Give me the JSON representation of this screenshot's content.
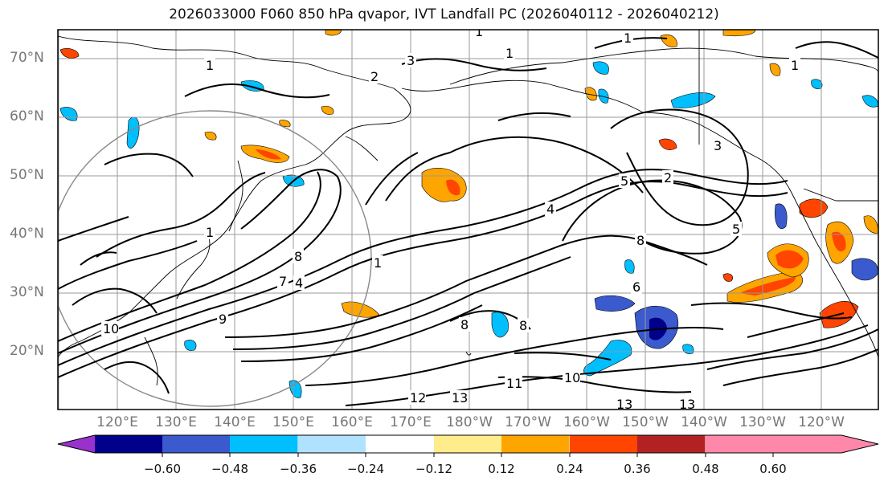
{
  "figure": {
    "title": "2026033000 F060 850 hPa qvapor, IVT Landfall PC (2026040112 - 2026040212)"
  },
  "axes": {
    "lat_labels": [
      "70°N",
      "60°N",
      "50°N",
      "40°N",
      "30°N",
      "20°N"
    ],
    "lon_labels": [
      "120°E",
      "130°E",
      "140°E",
      "150°E",
      "160°E",
      "170°E",
      "180°W",
      "170°W",
      "160°W",
      "150°W",
      "140°W",
      "130°W",
      "120°W"
    ]
  },
  "colorbar": {
    "colors": [
      "#9932cc",
      "#00008b",
      "#3a5acd",
      "#00bfff",
      "#b0e2ff",
      "#ffffff",
      "#ffec8b",
      "#ffa500",
      "#ff4500",
      "#b22222",
      "#ff88aa"
    ],
    "tick_labels": [
      "−0.60",
      "−0.48",
      "−0.36",
      "−0.24",
      "−0.12",
      "0.12",
      "0.24",
      "0.36",
      "0.48",
      "0.60"
    ]
  },
  "contour_labels": [
    "1",
    "1",
    "1",
    "1",
    "1",
    "1",
    "1",
    "2",
    "2",
    "3",
    "3",
    "4",
    "4",
    "5",
    "5",
    "6",
    "7",
    "8",
    "8",
    "8",
    "8",
    "9",
    "10",
    "10",
    "11",
    "12",
    "13",
    "13",
    "13"
  ]
}
